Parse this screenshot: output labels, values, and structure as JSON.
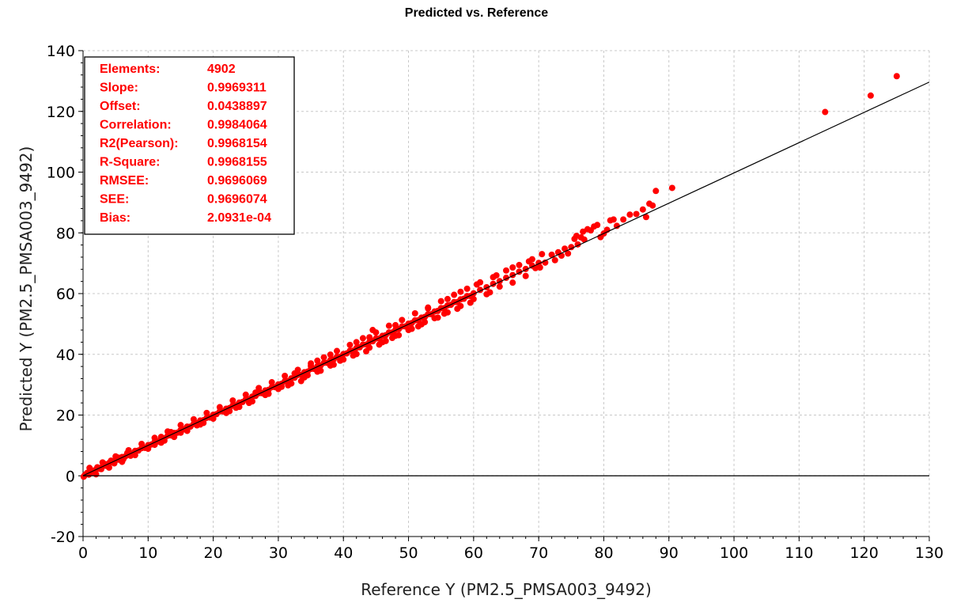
{
  "chart_data": {
    "type": "scatter",
    "title": "Predicted vs. Reference",
    "xlabel": "Reference Y (PM2.5_PMSA003_9492)",
    "ylabel": "Predicted Y (PM2.5_PMSA003_9492)",
    "xlim": [
      0,
      130
    ],
    "ylim": [
      -20,
      140
    ],
    "xticks": [
      0,
      10,
      20,
      30,
      40,
      50,
      60,
      70,
      80,
      90,
      100,
      110,
      120,
      130
    ],
    "yticks": [
      -20,
      0,
      20,
      40,
      60,
      80,
      100,
      120,
      140
    ],
    "grid": true,
    "point_color": "#ff0000",
    "fit_line": {
      "slope": 0.9969311,
      "offset": 0.0438897,
      "x_range": [
        0,
        130
      ],
      "color": "#000000"
    },
    "zero_line": {
      "y": 0,
      "color": "#000000"
    },
    "stats": [
      {
        "label": "Elements:",
        "value": "4902"
      },
      {
        "label": "Slope:",
        "value": "0.9969311"
      },
      {
        "label": "Offset:",
        "value": "0.0438897"
      },
      {
        "label": "Correlation:",
        "value": "0.9984064"
      },
      {
        "label": "R2(Pearson):",
        "value": "0.9968154"
      },
      {
        "label": "R-Square:",
        "value": "0.9968155"
      },
      {
        "label": "RMSEE:",
        "value": "0.9696069"
      },
      {
        "label": "SEE:",
        "value": "0.9696074"
      },
      {
        "label": "Bias:",
        "value": "2.0931e-04"
      }
    ],
    "series": [
      {
        "points": [
          [
            0.2,
            0.0
          ],
          [
            0.5,
            0.6
          ],
          [
            0.8,
            1.1
          ],
          [
            1.2,
            1.0
          ],
          [
            1.5,
            1.7
          ],
          [
            2.0,
            2.1
          ],
          [
            2.5,
            2.3
          ],
          [
            3.0,
            3.1
          ],
          [
            3.5,
            3.3
          ],
          [
            4.0,
            4.2
          ],
          [
            4.5,
            4.4
          ],
          [
            5.0,
            5.1
          ],
          [
            5.5,
            5.3
          ],
          [
            6.0,
            6.2
          ],
          [
            6.5,
            6.4
          ],
          [
            7.0,
            7.1
          ],
          [
            7.5,
            7.3
          ],
          [
            8.0,
            8.2
          ],
          [
            8.5,
            8.3
          ],
          [
            9.0,
            9.1
          ],
          [
            9.5,
            9.2
          ],
          [
            10.0,
            10.1
          ],
          [
            10.5,
            10.3
          ],
          [
            11.0,
            11.2
          ],
          [
            11.5,
            11.3
          ],
          [
            12.0,
            12.1
          ],
          [
            12.5,
            12.3
          ],
          [
            13.0,
            13.2
          ],
          [
            13.5,
            13.3
          ],
          [
            14.0,
            14.1
          ],
          [
            14.5,
            14.2
          ],
          [
            15.0,
            15.1
          ],
          [
            15.5,
            15.3
          ],
          [
            16.0,
            16.2
          ],
          [
            16.5,
            16.2
          ],
          [
            17.0,
            17.1
          ],
          [
            17.5,
            17.3
          ],
          [
            18.0,
            18.2
          ],
          [
            18.5,
            18.3
          ],
          [
            19.0,
            19.1
          ],
          [
            19.5,
            19.2
          ],
          [
            20.0,
            20.1
          ],
          [
            20.5,
            20.3
          ],
          [
            21.0,
            21.2
          ],
          [
            21.5,
            21.2
          ],
          [
            22.0,
            22.1
          ],
          [
            22.5,
            22.3
          ],
          [
            23.0,
            23.2
          ],
          [
            23.5,
            23.2
          ],
          [
            24.0,
            24.1
          ],
          [
            24.5,
            24.3
          ],
          [
            25.0,
            25.2
          ],
          [
            25.5,
            25.2
          ],
          [
            26.0,
            26.1
          ],
          [
            26.5,
            26.3
          ],
          [
            27.0,
            27.2
          ],
          [
            27.5,
            27.2
          ],
          [
            28.0,
            28.1
          ],
          [
            28.5,
            28.3
          ],
          [
            29.0,
            29.2
          ],
          [
            29.5,
            29.2
          ],
          [
            30.0,
            30.1
          ],
          [
            30.5,
            30.3
          ],
          [
            31.0,
            31.2
          ],
          [
            31.5,
            31.2
          ],
          [
            32.0,
            32.1
          ],
          [
            32.5,
            32.3
          ],
          [
            33.0,
            33.2
          ],
          [
            33.5,
            33.2
          ],
          [
            34.0,
            34.1
          ],
          [
            34.5,
            34.3
          ],
          [
            35.0,
            35.2
          ],
          [
            35.5,
            35.2
          ],
          [
            36.0,
            36.1
          ],
          [
            36.5,
            36.3
          ],
          [
            37.0,
            37.2
          ],
          [
            37.5,
            37.2
          ],
          [
            38.0,
            38.1
          ],
          [
            38.5,
            38.3
          ],
          [
            39.0,
            39.2
          ],
          [
            39.5,
            39.2
          ],
          [
            40.0,
            40.1
          ],
          [
            40.5,
            40.3
          ],
          [
            41.0,
            41.2
          ],
          [
            41.5,
            41.2
          ],
          [
            42.0,
            42.1
          ],
          [
            42.5,
            42.3
          ],
          [
            43.0,
            43.2
          ],
          [
            43.5,
            43.2
          ],
          [
            44.0,
            44.1
          ],
          [
            44.5,
            44.3
          ],
          [
            45.0,
            45.2
          ],
          [
            45.5,
            45.2
          ],
          [
            46.0,
            46.1
          ],
          [
            46.5,
            46.3
          ],
          [
            47.0,
            47.2
          ],
          [
            47.5,
            47.2
          ],
          [
            48.0,
            48.1
          ],
          [
            48.5,
            48.3
          ],
          [
            49.0,
            49.2
          ],
          [
            49.5,
            49.2
          ],
          [
            50.0,
            50.1
          ],
          [
            50.5,
            50.3
          ],
          [
            51.0,
            51.2
          ],
          [
            51.5,
            51.2
          ],
          [
            52.0,
            52.1
          ],
          [
            52.5,
            52.3
          ],
          [
            53.0,
            53.2
          ],
          [
            53.5,
            53.2
          ],
          [
            54.0,
            54.1
          ],
          [
            54.5,
            54.3
          ],
          [
            55.0,
            55.2
          ],
          [
            55.5,
            55.2
          ],
          [
            56.0,
            56.1
          ],
          [
            56.5,
            56.3
          ],
          [
            57.0,
            57.2
          ],
          [
            57.5,
            57.2
          ],
          [
            58.0,
            58.1
          ],
          [
            58.5,
            58.3
          ],
          [
            59.0,
            59.2
          ],
          [
            59.5,
            59.2
          ],
          [
            60.0,
            60.1
          ],
          [
            61.0,
            61.2
          ],
          [
            62.0,
            62.1
          ],
          [
            63.0,
            63.2
          ],
          [
            64.0,
            64.1
          ],
          [
            65.0,
            65.2
          ],
          [
            66.0,
            66.1
          ],
          [
            67.0,
            67.2
          ],
          [
            68.0,
            68.1
          ],
          [
            69.0,
            69.2
          ],
          [
            70.0,
            70.1
          ],
          [
            2.0,
            0.5
          ],
          [
            4.0,
            2.7
          ],
          [
            6.0,
            4.6
          ],
          [
            8.0,
            6.8
          ],
          [
            10.0,
            8.9
          ],
          [
            12.0,
            10.9
          ],
          [
            14.0,
            12.8
          ],
          [
            16.0,
            14.8
          ],
          [
            18.0,
            16.9
          ],
          [
            20.0,
            18.8
          ],
          [
            22.0,
            20.7
          ],
          [
            24.0,
            22.7
          ],
          [
            26.0,
            24.5
          ],
          [
            28.0,
            26.6
          ],
          [
            30.0,
            28.6
          ],
          [
            32.0,
            30.4
          ],
          [
            34.0,
            32.4
          ],
          [
            36.0,
            34.3
          ],
          [
            38.0,
            36.3
          ],
          [
            40.0,
            38.3
          ],
          [
            42.0,
            40.1
          ],
          [
            44.0,
            42.2
          ],
          [
            46.0,
            44.0
          ],
          [
            48.0,
            46.1
          ],
          [
            50.0,
            48.0
          ],
          [
            52.0,
            49.9
          ],
          [
            54.0,
            51.9
          ],
          [
            56.0,
            53.8
          ],
          [
            58.0,
            55.9
          ],
          [
            60.0,
            58.2
          ],
          [
            62.0,
            59.8
          ],
          [
            64.0,
            62.3
          ],
          [
            66.0,
            63.6
          ],
          [
            68.0,
            65.8
          ],
          [
            1.0,
            2.6
          ],
          [
            3.0,
            4.4
          ],
          [
            5.0,
            6.4
          ],
          [
            7.0,
            8.4
          ],
          [
            9.0,
            10.5
          ],
          [
            11.0,
            12.5
          ],
          [
            13.0,
            14.6
          ],
          [
            15.0,
            16.7
          ],
          [
            17.0,
            18.6
          ],
          [
            19.0,
            20.7
          ],
          [
            21.0,
            22.6
          ],
          [
            23.0,
            24.8
          ],
          [
            25.0,
            26.7
          ],
          [
            27.0,
            28.9
          ],
          [
            29.0,
            30.8
          ],
          [
            31.0,
            32.9
          ],
          [
            33.0,
            34.9
          ],
          [
            35.0,
            37.0
          ],
          [
            37.0,
            39.0
          ],
          [
            39.0,
            41.1
          ],
          [
            41.0,
            43.1
          ],
          [
            43.0,
            45.3
          ],
          [
            45.0,
            47.2
          ],
          [
            47.0,
            49.4
          ],
          [
            49.0,
            51.3
          ],
          [
            51.0,
            53.5
          ],
          [
            53.0,
            55.4
          ],
          [
            55.0,
            57.5
          ],
          [
            57.0,
            59.6
          ],
          [
            59.0,
            61.6
          ],
          [
            61.0,
            63.7
          ],
          [
            63.0,
            65.4
          ],
          [
            65.0,
            67.6
          ],
          [
            67.0,
            69.4
          ],
          [
            69.0,
            71.3
          ],
          [
            15.0,
            14.2
          ],
          [
            18.5,
            17.4
          ],
          [
            25.5,
            24.0
          ],
          [
            28.5,
            27.0
          ],
          [
            31.5,
            29.8
          ],
          [
            33.5,
            31.2
          ],
          [
            36.5,
            34.6
          ],
          [
            41.5,
            39.6
          ],
          [
            43.5,
            41.0
          ],
          [
            46.5,
            44.4
          ],
          [
            48.5,
            46.3
          ],
          [
            51.5,
            49.2
          ],
          [
            54.5,
            52.1
          ],
          [
            57.5,
            55.0
          ],
          [
            59.5,
            57.0
          ],
          [
            62.5,
            60.4
          ],
          [
            12.5,
            11.6
          ],
          [
            22.5,
            21.3
          ],
          [
            38.5,
            36.6
          ],
          [
            45.5,
            43.2
          ],
          [
            27.0,
            28.0
          ],
          [
            35.0,
            36.2
          ],
          [
            44.0,
            45.6
          ],
          [
            48.0,
            49.6
          ],
          [
            53.0,
            55.1
          ],
          [
            56.0,
            58.2
          ],
          [
            58.0,
            60.6
          ],
          [
            60.5,
            63.0
          ],
          [
            63.5,
            66.0
          ],
          [
            66.0,
            68.6
          ],
          [
            68.5,
            70.6
          ],
          [
            70.5,
            73.0
          ],
          [
            42.0,
            44.0
          ],
          [
            38.0,
            39.9
          ],
          [
            71.0,
            70.2
          ],
          [
            72.0,
            72.8
          ],
          [
            72.5,
            71.0
          ],
          [
            73.0,
            73.6
          ],
          [
            73.5,
            72.5
          ],
          [
            74.0,
            74.8
          ],
          [
            74.5,
            73.2
          ],
          [
            75.0,
            75.3
          ],
          [
            75.5,
            78.0
          ],
          [
            76.0,
            76.2
          ],
          [
            76.5,
            78.5
          ],
          [
            77.0,
            77.8
          ],
          [
            77.5,
            81.2
          ],
          [
            78.0,
            80.8
          ],
          [
            78.5,
            82.1
          ],
          [
            79.0,
            82.6
          ],
          [
            79.5,
            78.6
          ],
          [
            80.0,
            79.8
          ],
          [
            80.5,
            81.0
          ],
          [
            81.0,
            84.1
          ],
          [
            81.5,
            84.4
          ],
          [
            82.0,
            82.3
          ],
          [
            83.0,
            84.4
          ],
          [
            84.0,
            86.0
          ],
          [
            85.0,
            86.2
          ],
          [
            86.0,
            87.7
          ],
          [
            86.5,
            85.2
          ],
          [
            87.0,
            89.6
          ],
          [
            87.5,
            89.0
          ],
          [
            88.0,
            93.8
          ],
          [
            90.5,
            94.8
          ],
          [
            75.8,
            79.0
          ],
          [
            76.8,
            80.4
          ],
          [
            70.2,
            68.6
          ],
          [
            69.5,
            68.4
          ],
          [
            44.5,
            48.0
          ],
          [
            36.0,
            37.9
          ],
          [
            12.0,
            12.8
          ],
          [
            13.5,
            14.4
          ],
          [
            26.5,
            27.4
          ],
          [
            32.5,
            33.7
          ],
          [
            11.0,
            10.2
          ],
          [
            17.5,
            16.6
          ],
          [
            23.5,
            22.4
          ],
          [
            30.5,
            29.3
          ],
          [
            34.5,
            33.1
          ],
          [
            39.5,
            37.9
          ],
          [
            47.5,
            45.4
          ],
          [
            50.5,
            48.4
          ],
          [
            52.5,
            50.6
          ],
          [
            55.5,
            53.4
          ],
          [
            0.1,
            -0.3
          ],
          [
            0.3,
            0.3
          ],
          [
            0.6,
            0.9
          ],
          [
            0.9,
            0.4
          ],
          [
            1.3,
            1.6
          ],
          [
            1.7,
            1.3
          ],
          [
            2.2,
            2.8
          ],
          [
            2.8,
            2.2
          ],
          [
            3.3,
            3.9
          ],
          [
            3.8,
            3.2
          ],
          [
            4.3,
            5.0
          ],
          [
            4.8,
            4.1
          ],
          [
            5.4,
            6.0
          ],
          [
            6.2,
            5.5
          ],
          [
            6.8,
            7.5
          ],
          [
            7.3,
            6.6
          ],
          [
            114.0,
            119.8
          ],
          [
            121.0,
            125.2
          ],
          [
            125.0,
            131.6
          ]
        ]
      }
    ]
  }
}
